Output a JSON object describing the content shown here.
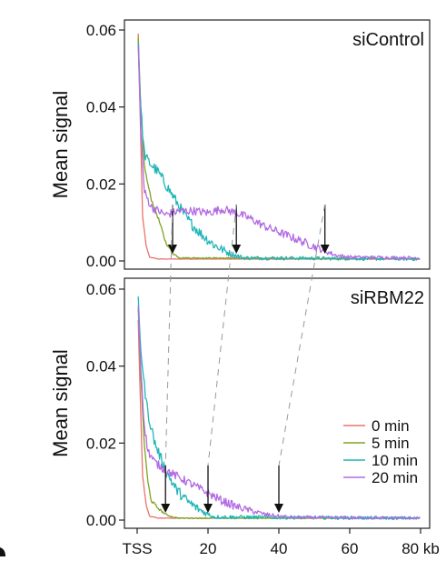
{
  "chart_data": {
    "type": "line",
    "x_unit": "kb",
    "x_ticks": [
      {
        "value": 0,
        "label": "TSS"
      },
      {
        "value": 20,
        "label": "20"
      },
      {
        "value": 40,
        "label": "40"
      },
      {
        "value": 60,
        "label": "60"
      },
      {
        "value": 80,
        "label": "80 kb"
      }
    ],
    "xlim": [
      -1,
      80
    ],
    "ylim": [
      0,
      0.062
    ],
    "y_ticks": [
      "0.00",
      "0.02",
      "0.04",
      "0.06"
    ],
    "ylabel": "Mean signal",
    "legend": {
      "position": "bottom-right",
      "entries": [
        {
          "label": "0 min",
          "color": "#e8736b"
        },
        {
          "label": "5 min",
          "color": "#7ea321"
        },
        {
          "label": "10 min",
          "color": "#1fb5b8"
        },
        {
          "label": "20 min",
          "color": "#b26be3"
        }
      ]
    },
    "panels": [
      {
        "title": "siControl",
        "arrows_kb": [
          10,
          28,
          53
        ],
        "series": [
          {
            "name": "0 min",
            "color": "#e8736b",
            "x": [
              0.3,
              0.8,
              1.5,
              2.5,
              3.5,
              6,
              80
            ],
            "y": [
              0.059,
              0.04,
              0.012,
              0.004,
              0.001,
              0.0005,
              0.0005
            ]
          },
          {
            "name": "5 min",
            "color": "#7ea321",
            "x": [
              0.3,
              1,
              2,
              3,
              4,
              6,
              8,
              10,
              12,
              80
            ],
            "y": [
              0.058,
              0.04,
              0.025,
              0.02,
              0.016,
              0.011,
              0.005,
              0.002,
              0.0008,
              0.0005
            ]
          },
          {
            "name": "10 min",
            "color": "#1fb5b8",
            "x": [
              0.3,
              1,
              2,
              3,
              6,
              10,
              14,
              18,
              22,
              26,
              30,
              80
            ],
            "y": [
              0.057,
              0.04,
              0.028,
              0.026,
              0.023,
              0.017,
              0.011,
              0.007,
              0.004,
              0.002,
              0.0008,
              0.0005
            ]
          },
          {
            "name": "20 min",
            "color": "#b26be3",
            "x": [
              0.3,
              1,
              2,
              4,
              8,
              12,
              16,
              20,
              24,
              28,
              32,
              36,
              40,
              44,
              48,
              52,
              56,
              60,
              80
            ],
            "y": [
              0.056,
              0.035,
              0.018,
              0.014,
              0.012,
              0.013,
              0.013,
              0.0125,
              0.0135,
              0.0125,
              0.011,
              0.009,
              0.0075,
              0.006,
              0.0045,
              0.003,
              0.0015,
              0.001,
              0.0008
            ]
          }
        ]
      },
      {
        "title": "siRBM22",
        "arrows_kb": [
          8,
          20,
          40
        ],
        "series": [
          {
            "name": "0 min",
            "color": "#e8736b",
            "x": [
              0.3,
              0.8,
              1.5,
              2.5,
              3.5,
              6,
              80
            ],
            "y": [
              0.052,
              0.035,
              0.012,
              0.004,
              0.001,
              0.0005,
              0.0005
            ]
          },
          {
            "name": "5 min",
            "color": "#7ea321",
            "x": [
              0.3,
              1,
              2,
              3,
              4,
              6,
              8,
              10,
              12,
              80
            ],
            "y": [
              0.055,
              0.038,
              0.02,
              0.01,
              0.005,
              0.003,
              0.0015,
              0.0008,
              0.0005,
              0.0005
            ]
          },
          {
            "name": "10 min",
            "color": "#1fb5b8",
            "x": [
              0.3,
              1,
              2,
              3,
              5,
              8,
              11,
              14,
              17,
              20,
              22,
              80
            ],
            "y": [
              0.057,
              0.045,
              0.035,
              0.028,
              0.02,
              0.013,
              0.008,
              0.005,
              0.003,
              0.0015,
              0.0008,
              0.0005
            ]
          },
          {
            "name": "20 min",
            "color": "#b26be3",
            "x": [
              0.3,
              1,
              2,
              3,
              5,
              8,
              12,
              16,
              20,
              24,
              28,
              32,
              36,
              40,
              44,
              80
            ],
            "y": [
              0.056,
              0.04,
              0.025,
              0.018,
              0.015,
              0.013,
              0.011,
              0.009,
              0.007,
              0.005,
              0.0035,
              0.0025,
              0.0015,
              0.001,
              0.0007,
              0.0005
            ]
          }
        ]
      }
    ]
  }
}
